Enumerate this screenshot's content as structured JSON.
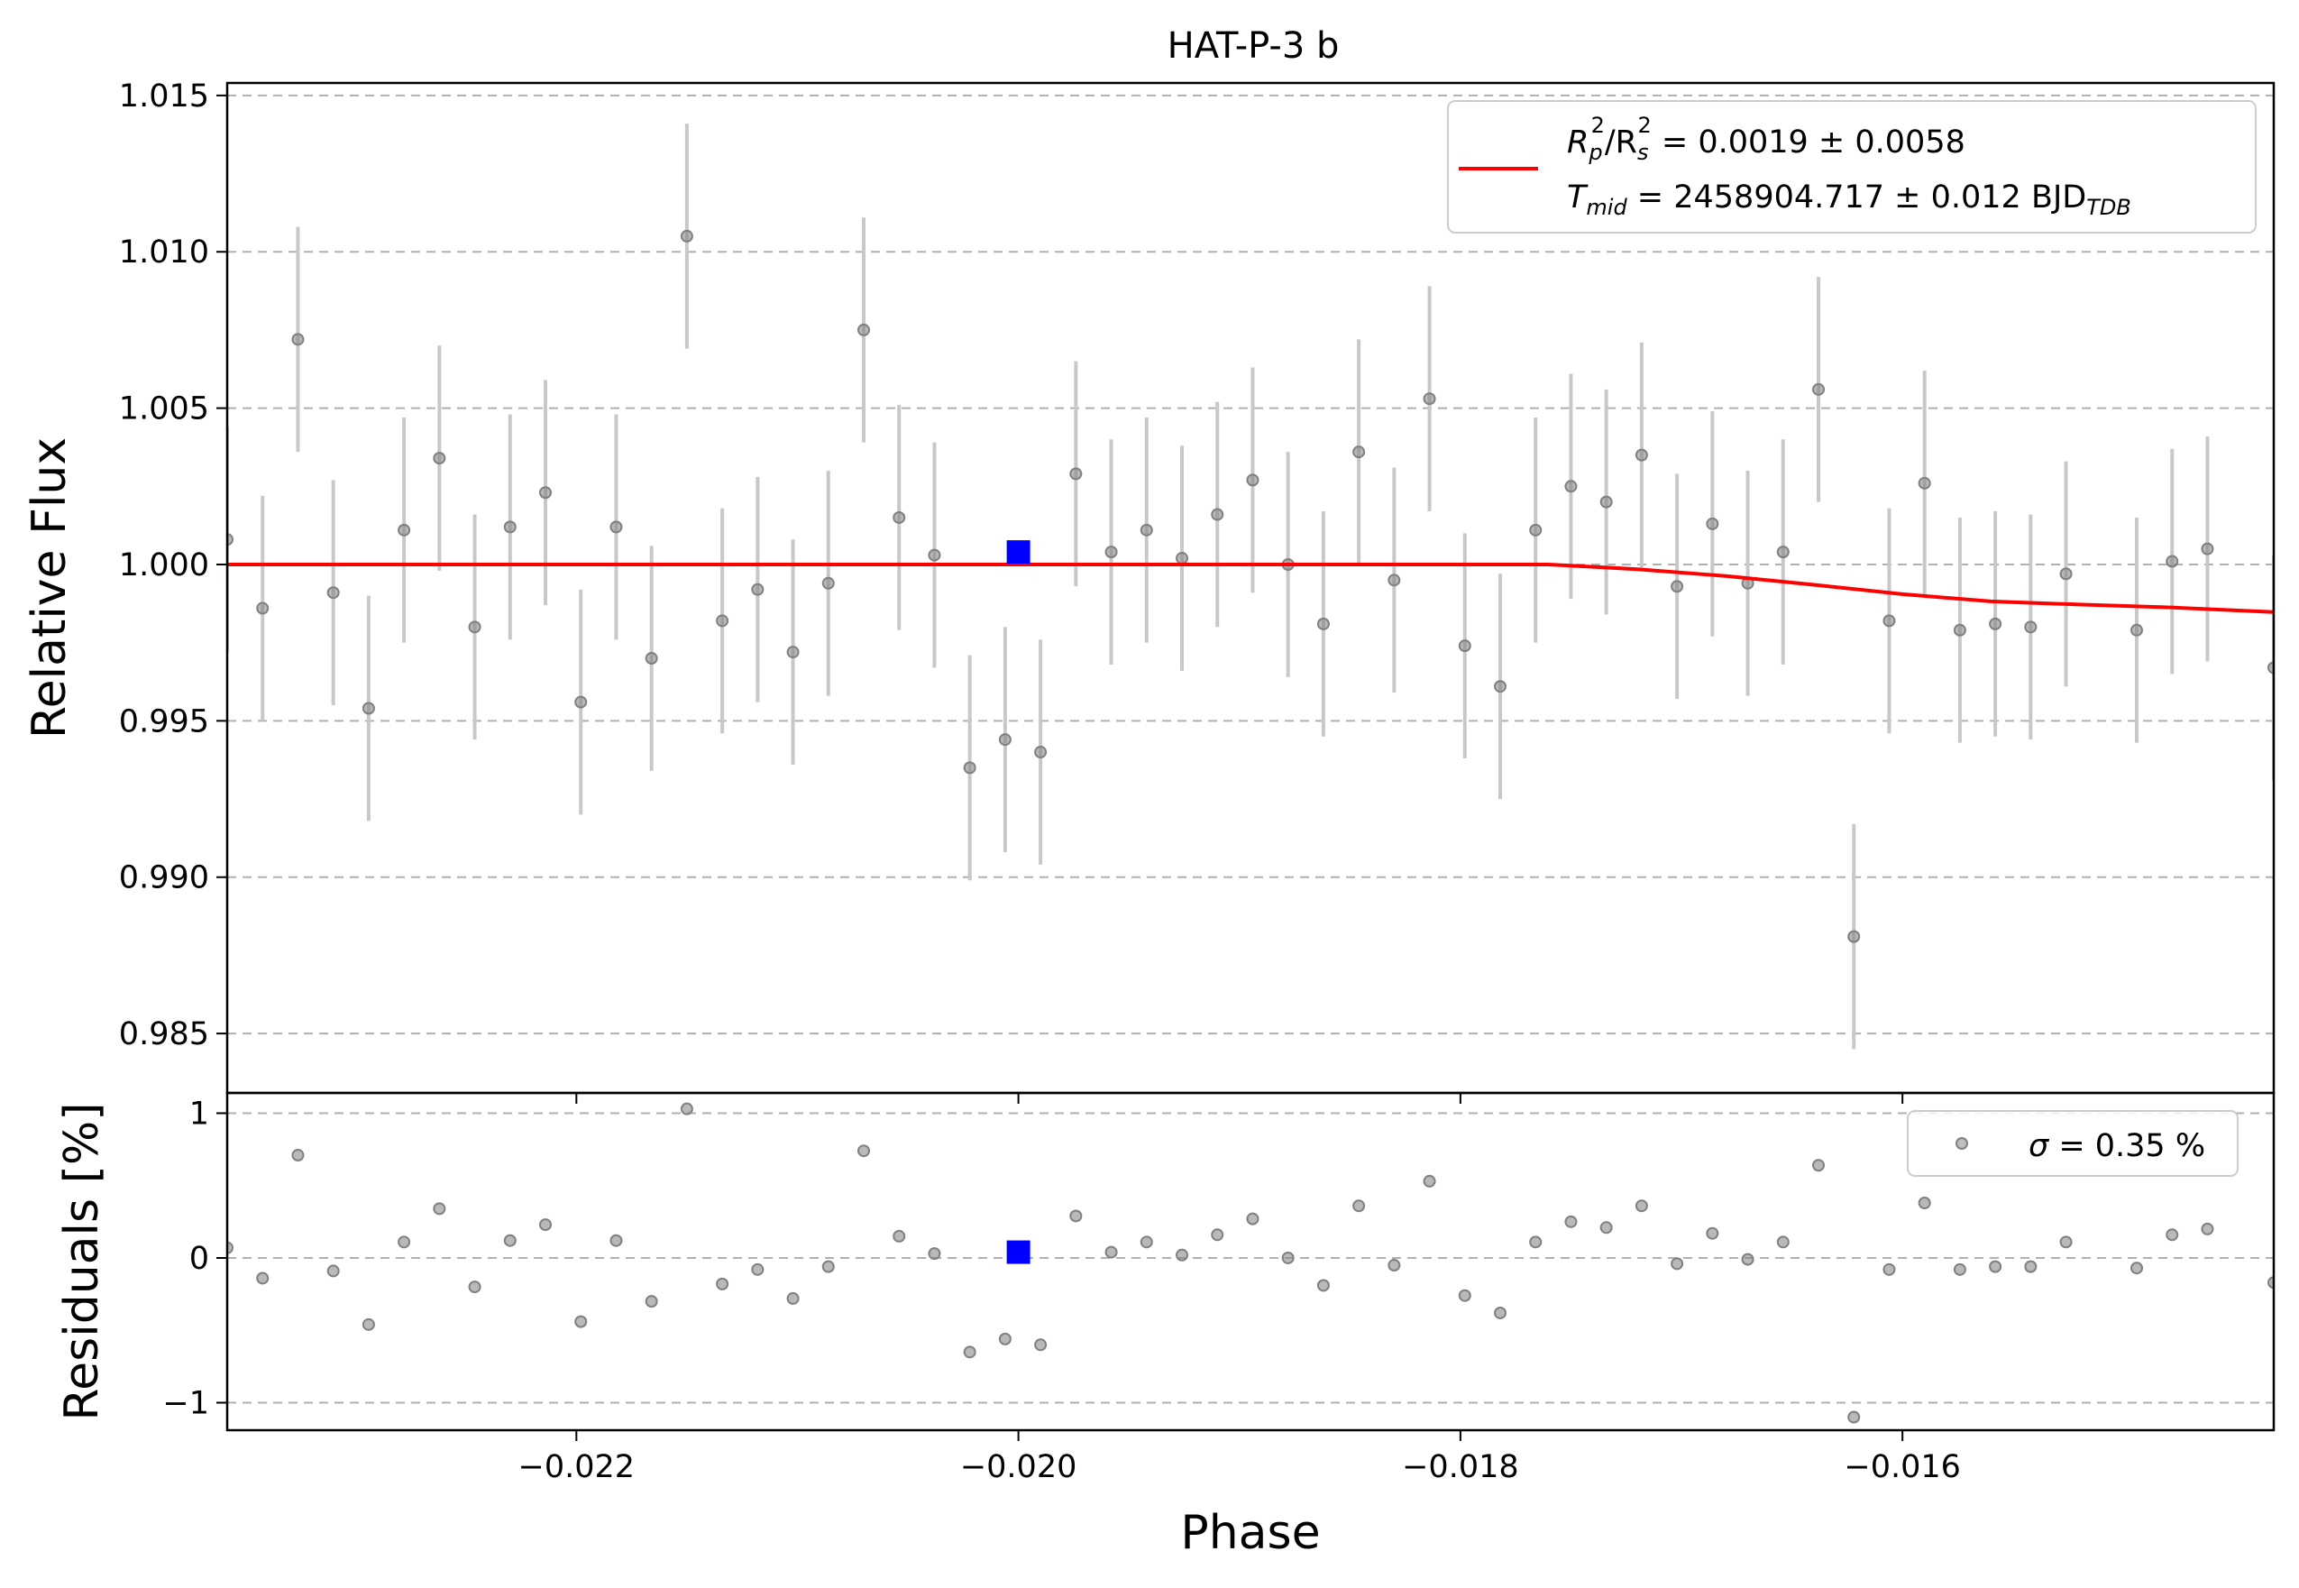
{
  "chart_data": [
    {
      "type": "scatter",
      "panel": "main",
      "title": "HAT-P-3 b",
      "xlabel": "",
      "ylabel": "Relative Flux",
      "xlim": [
        -0.02358,
        -0.01432
      ],
      "ylim": [
        0.9831,
        1.0154
      ],
      "grid": "horizontal dashed",
      "legend_position": "top-right",
      "xticks": [
        -0.022,
        -0.02,
        -0.018,
        -0.016
      ],
      "yticks": [
        {
          "value": 0.985,
          "label": "0.985"
        },
        {
          "value": 0.99,
          "label": "0.990"
        },
        {
          "value": 0.995,
          "label": "0.995"
        },
        {
          "value": 1.0,
          "label": "1.000"
        },
        {
          "value": 1.005,
          "label": "1.005"
        },
        {
          "value": 1.01,
          "label": "1.010"
        },
        {
          "value": 1.015,
          "label": "1.015"
        }
      ],
      "legend": {
        "line1": {
          "r1": "R",
          "r1sub": "p",
          "r1sup": "2",
          "r2": "/R",
          "r2sub": "s",
          "r2sup": "2",
          "value": " = 0.0019 ± 0.0058"
        },
        "line2": {
          "t": "T",
          "tsub": "mid",
          "value": " = 2458904.717 ± 0.012 BJD",
          "valsub": "TDB"
        }
      },
      "series": [
        {
          "kind": "data with error bars",
          "color": "#808080",
          "err_color": "#c8c8c8",
          "x": [
            -0.02358,
            -0.02342,
            -0.02326,
            -0.0231,
            -0.02294,
            -0.02278,
            -0.02262,
            -0.02246,
            -0.0223,
            -0.02214,
            -0.02198,
            -0.02182,
            -0.02166,
            -0.0215,
            -0.02134,
            -0.02118,
            -0.02102,
            -0.02086,
            -0.0207,
            -0.02054,
            -0.02038,
            -0.02022,
            -0.02006,
            -0.0199,
            -0.01974,
            -0.01958,
            -0.01942,
            -0.01926,
            -0.0191,
            -0.01894,
            -0.01878,
            -0.01862,
            -0.01846,
            -0.0183,
            -0.01814,
            -0.01798,
            -0.01782,
            -0.01766,
            -0.0175,
            -0.01734,
            -0.01718,
            -0.01702,
            -0.01686,
            -0.0167,
            -0.01654,
            -0.01638,
            -0.01622,
            -0.01606,
            -0.0159,
            -0.01574,
            -0.01558,
            -0.01542,
            -0.01526,
            -0.01494,
            -0.01478,
            -0.01462,
            -0.01432
          ],
          "y": [
            1.0008,
            0.9986,
            1.0072,
            0.9991,
            0.9954,
            1.0011,
            1.0034,
            0.998,
            1.0012,
            1.0023,
            0.9956,
            1.0012,
            0.997,
            1.0105,
            0.9982,
            0.9992,
            0.9972,
            0.9994,
            1.0075,
            1.0015,
            1.0003,
            0.9935,
            0.9944,
            0.994,
            1.0029,
            1.0004,
            1.0011,
            1.0002,
            1.0016,
            1.0027,
            1.0,
            0.9981,
            1.0036,
            0.9995,
            1.0053,
            0.9974,
            0.9961,
            1.0011,
            1.0025,
            1.002,
            1.0035,
            0.9993,
            1.0013,
            0.9994,
            1.0004,
            1.0056,
            0.9881,
            0.9982,
            1.0026,
            0.9979,
            0.9981,
            0.998,
            0.9997,
            0.9979,
            1.0001,
            1.0005,
            0.9967
          ],
          "err": [
            0.0036,
            0.0036,
            0.0036,
            0.0036,
            0.0036,
            0.0036,
            0.0036,
            0.0036,
            0.0036,
            0.0036,
            0.0036,
            0.0036,
            0.0036,
            0.0036,
            0.0036,
            0.0036,
            0.0036,
            0.0036,
            0.0036,
            0.0036,
            0.0036,
            0.0036,
            0.0036,
            0.0036,
            0.0036,
            0.0036,
            0.0036,
            0.0036,
            0.0036,
            0.0036,
            0.0036,
            0.0036,
            0.0036,
            0.0036,
            0.0036,
            0.0036,
            0.0036,
            0.0036,
            0.0036,
            0.0036,
            0.0036,
            0.0036,
            0.0036,
            0.0036,
            0.0036,
            0.0036,
            0.0036,
            0.0036,
            0.0036,
            0.0036,
            0.0036,
            0.0036,
            0.0036,
            0.0036,
            0.0036,
            0.0036,
            0.0036
          ]
        },
        {
          "kind": "binned point",
          "color": "#0000ff",
          "x": [
            -0.02
          ],
          "y": [
            1.0004
          ],
          "err": [
            0.0003
          ]
        },
        {
          "kind": "model",
          "color": "#ff0000",
          "x": [
            -0.02358,
            -0.0176,
            -0.0172,
            -0.0168,
            -0.0164,
            -0.016,
            -0.0156,
            -0.0152,
            -0.0148,
            -0.01432
          ],
          "y": [
            1.0,
            1.0,
            0.99985,
            0.99963,
            0.99935,
            0.99905,
            0.99882,
            0.99872,
            0.99863,
            0.99848
          ]
        }
      ]
    },
    {
      "type": "scatter",
      "panel": "residuals",
      "xlabel": "Phase",
      "ylabel": "Residuals [%]",
      "xlim": [
        -0.02358,
        -0.01432
      ],
      "ylim": [
        -1.19,
        1.14
      ],
      "grid": "horizontal dashed",
      "legend_position": "top-right",
      "xticks": [
        {
          "value": -0.022,
          "label": "−0.022"
        },
        {
          "value": -0.02,
          "label": "−0.020"
        },
        {
          "value": -0.018,
          "label": "−0.018"
        },
        {
          "value": -0.016,
          "label": "−0.016"
        }
      ],
      "yticks": [
        {
          "value": -1,
          "label": "−1"
        },
        {
          "value": 0,
          "label": "0"
        },
        {
          "value": 1,
          "label": "1"
        }
      ],
      "legend": {
        "sigma": "σ",
        "value": " = 0.35 %"
      },
      "series": [
        {
          "kind": "residuals",
          "color": "#808080",
          "x": [
            -0.02358,
            -0.02342,
            -0.02326,
            -0.0231,
            -0.02294,
            -0.02278,
            -0.02262,
            -0.02246,
            -0.0223,
            -0.02214,
            -0.02198,
            -0.02182,
            -0.02166,
            -0.0215,
            -0.02134,
            -0.02118,
            -0.02102,
            -0.02086,
            -0.0207,
            -0.02054,
            -0.02038,
            -0.02022,
            -0.02006,
            -0.0199,
            -0.01974,
            -0.01958,
            -0.01942,
            -0.01926,
            -0.0191,
            -0.01894,
            -0.01878,
            -0.01862,
            -0.01846,
            -0.0183,
            -0.01814,
            -0.01798,
            -0.01782,
            -0.01766,
            -0.0175,
            -0.01734,
            -0.01718,
            -0.01702,
            -0.01686,
            -0.0167,
            -0.01654,
            -0.01638,
            -0.01622,
            -0.01606,
            -0.0159,
            -0.01574,
            -0.01558,
            -0.01542,
            -0.01526,
            -0.01494,
            -0.01478,
            -0.01462,
            -0.01432
          ],
          "y": [
            0.07,
            -0.14,
            0.71,
            -0.09,
            -0.46,
            0.11,
            0.34,
            -0.2,
            0.12,
            0.23,
            -0.44,
            0.12,
            -0.3,
            1.03,
            -0.18,
            -0.08,
            -0.28,
            -0.06,
            0.74,
            0.15,
            0.03,
            -0.65,
            -0.56,
            -0.6,
            0.29,
            0.04,
            0.11,
            0.02,
            0.16,
            0.27,
            0.0,
            -0.19,
            0.36,
            -0.05,
            0.53,
            -0.26,
            -0.38,
            0.11,
            0.25,
            0.21,
            0.36,
            -0.04,
            0.17,
            -0.01,
            0.11,
            0.64,
            -1.1,
            -0.08,
            0.38,
            -0.08,
            -0.06,
            -0.06,
            0.11,
            -0.07,
            0.16,
            0.2,
            -0.17
          ]
        },
        {
          "kind": "binned point",
          "color": "#0000ff",
          "x": [
            -0.02
          ],
          "y": [
            0.04
          ]
        }
      ]
    }
  ]
}
